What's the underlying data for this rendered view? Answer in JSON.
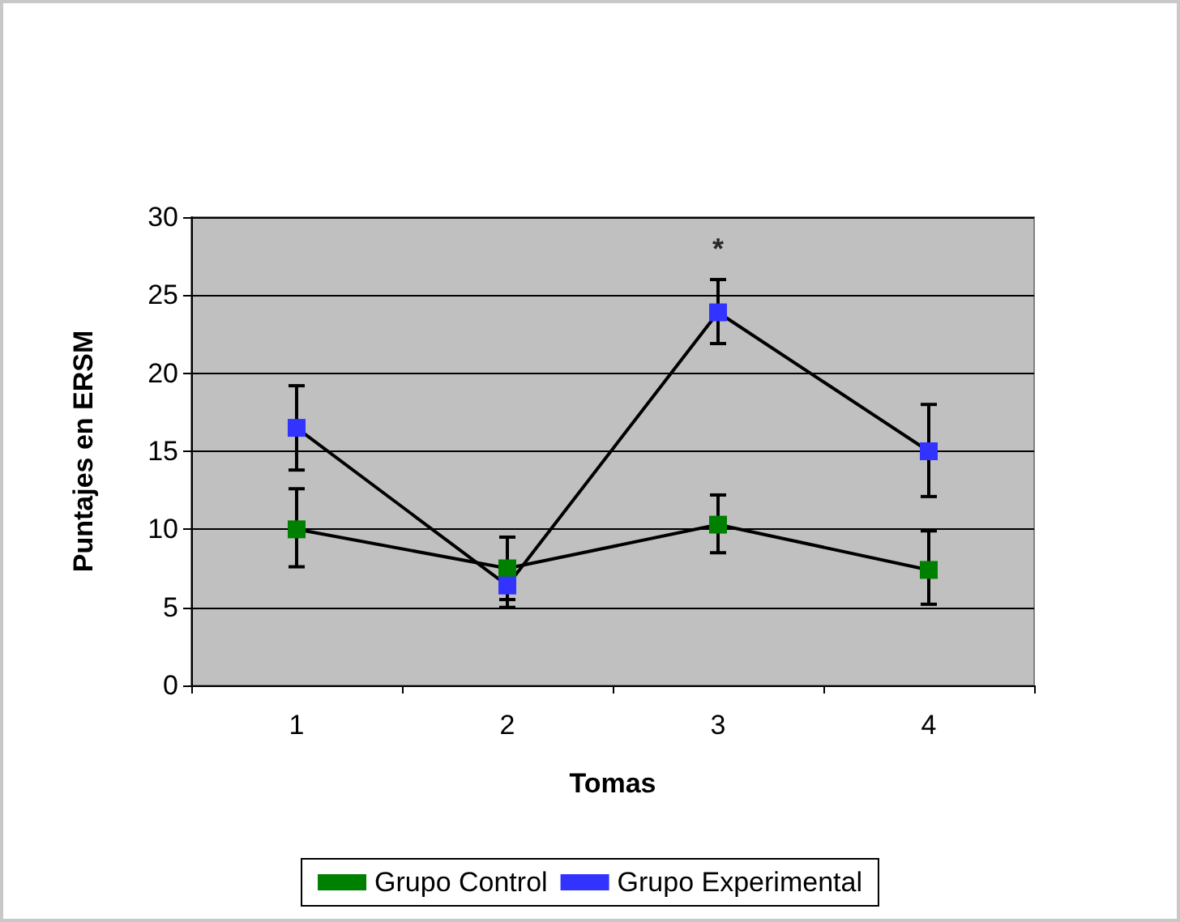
{
  "chart_data": {
    "type": "line",
    "xlabel": "Tomas",
    "ylabel": "Puntajes en ERSM",
    "categories": [
      "1",
      "2",
      "3",
      "4"
    ],
    "series": [
      {
        "name": "Grupo Control",
        "color": "#008000",
        "values": [
          10,
          7.5,
          10.3,
          7.4
        ],
        "errors": [
          [
            7.6,
            12.6
          ],
          [
            5.5,
            9.5
          ],
          [
            8.5,
            12.2
          ],
          [
            5.2,
            9.9
          ]
        ]
      },
      {
        "name": "Grupo Experimental",
        "color": "#3333ff",
        "values": [
          16.5,
          6.4,
          23.9,
          15.0
        ],
        "errors": [
          [
            13.8,
            19.2
          ],
          [
            5.0,
            7.8
          ],
          [
            21.9,
            26.0
          ],
          [
            12.1,
            18.0
          ]
        ]
      }
    ],
    "annotations": [
      "*"
    ],
    "ylim": [
      0,
      30
    ],
    "yticks": [
      0,
      5,
      10,
      15,
      20,
      25,
      30
    ],
    "grid": "y",
    "legend": "bottom",
    "marker": "square",
    "line_style": "solid"
  }
}
